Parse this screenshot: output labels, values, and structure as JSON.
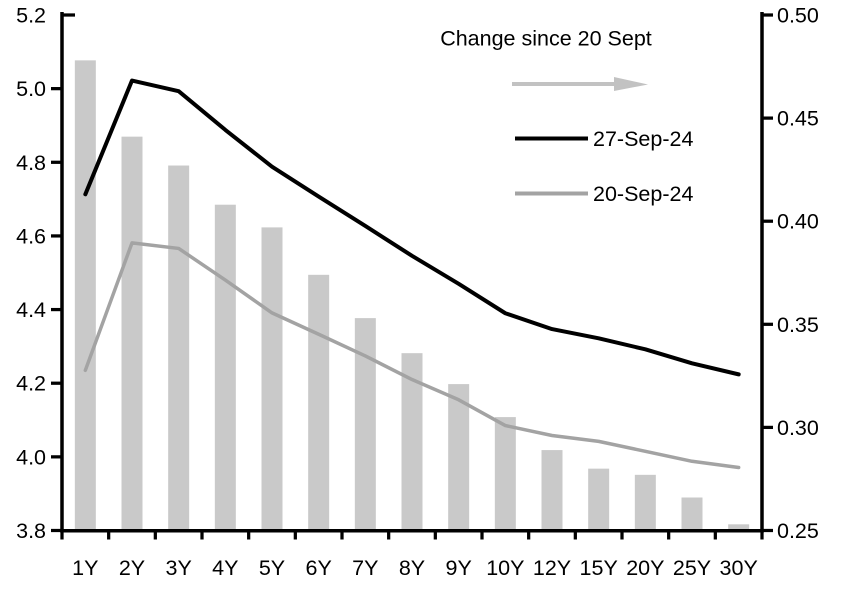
{
  "chart_data": {
    "type": "bar+line",
    "title": "",
    "categories": [
      "1Y",
      "2Y",
      "3Y",
      "4Y",
      "5Y",
      "6Y",
      "7Y",
      "8Y",
      "9Y",
      "10Y",
      "12Y",
      "15Y",
      "20Y",
      "25Y",
      "30Y"
    ],
    "left_axis": {
      "min": 3.8,
      "max": 5.2,
      "tick_values": [
        5.2,
        5.0,
        4.8,
        4.6,
        4.4,
        4.2,
        4.0,
        3.8
      ],
      "tick_labels": [
        "5.2",
        "5.0",
        "4.8",
        "4.6",
        "4.4",
        "4.2",
        "4.0",
        "3.8"
      ]
    },
    "right_axis": {
      "min": 0.25,
      "max": 0.5,
      "tick_values": [
        0.5,
        0.45,
        0.4,
        0.35,
        0.3,
        0.25
      ],
      "tick_labels": [
        "0.50",
        "0.45",
        "0.40",
        "0.35",
        "0.30",
        "0.25"
      ]
    },
    "grid": false,
    "background": "#ffffff",
    "series": [
      {
        "name": "Change since 20 Sept",
        "type": "bar",
        "axis": "right",
        "color": "#c9c9c9",
        "values": [
          0.478,
          0.441,
          0.427,
          0.408,
          0.397,
          0.374,
          0.353,
          0.336,
          0.321,
          0.305,
          0.289,
          0.28,
          0.277,
          0.266,
          0.253
        ]
      },
      {
        "name": "27-Sep-24",
        "type": "line",
        "axis": "left",
        "color": "#000000",
        "values": [
          4.713,
          5.022,
          4.993,
          4.888,
          4.788,
          4.707,
          4.627,
          4.546,
          4.47,
          4.39,
          4.347,
          4.322,
          4.292,
          4.254,
          4.224
        ]
      },
      {
        "name": "20-Sep-24",
        "type": "line",
        "axis": "left",
        "color": "#a3a3a3",
        "values": [
          4.235,
          4.581,
          4.566,
          4.48,
          4.391,
          4.333,
          4.274,
          4.21,
          4.155,
          4.085,
          4.058,
          4.042,
          4.015,
          3.988,
          3.971
        ]
      }
    ],
    "legend": {
      "annotation": "Change since 20 Sept",
      "arrow_color": "#c2c2c2",
      "entries": [
        {
          "label": "27-Sep-24",
          "color": "#000000"
        },
        {
          "label": "20-Sep-24",
          "color": "#a3a3a3"
        }
      ]
    }
  }
}
